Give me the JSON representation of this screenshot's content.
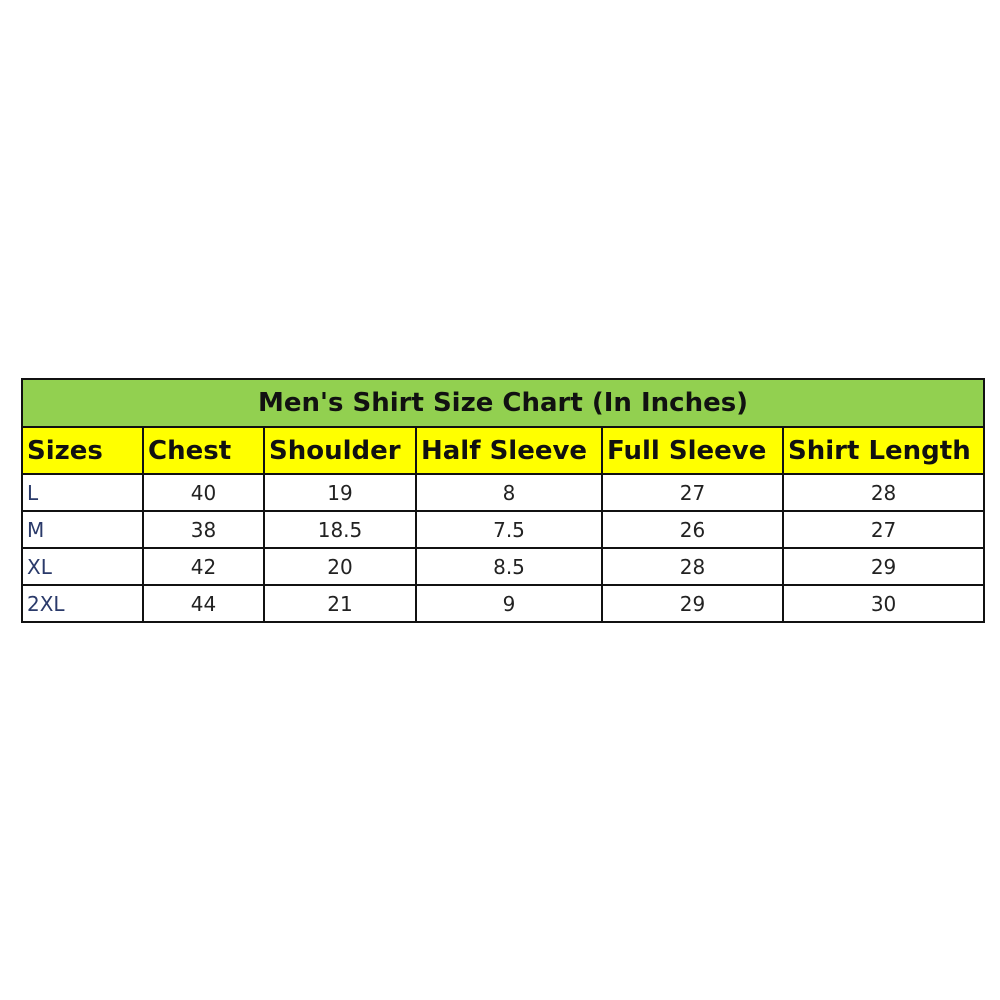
{
  "title": "Men's Shirt Size Chart (In Inches)",
  "headers": [
    "Sizes",
    "Chest",
    "Shoulder",
    "Half Sleeve",
    "Full Sleeve",
    "Shirt Length"
  ],
  "rows": [
    [
      "L",
      "40",
      "19",
      "8",
      "27",
      "28"
    ],
    [
      "M",
      "38",
      "18.5",
      "7.5",
      "26",
      "27"
    ],
    [
      "XL",
      "42",
      "20",
      "8.5",
      "28",
      "29"
    ],
    [
      "2XL",
      "44",
      "21",
      "9",
      "29",
      "30"
    ]
  ],
  "colors": {
    "title_bg": "#92d050",
    "header_bg": "#ffff00"
  }
}
